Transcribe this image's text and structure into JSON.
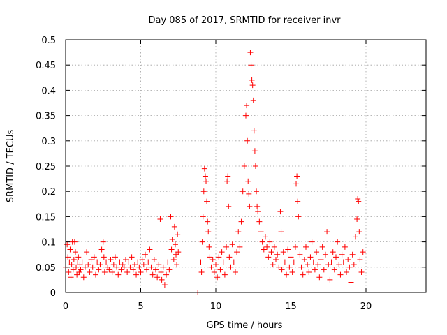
{
  "chart_data": {
    "type": "scatter",
    "title": "Day 085 of 2017, SRMTID for receiver invr",
    "xlabel": "GPS time / hours",
    "ylabel": "SRMTID / TECUs",
    "xlim": [
      0,
      24
    ],
    "ylim": [
      0,
      0.5
    ],
    "x_ticks": [
      "0",
      "5",
      "10",
      "15",
      "20"
    ],
    "y_ticks": [
      "0",
      "0.05",
      "0.1",
      "0.15",
      "0.2",
      "0.25",
      "0.3",
      "0.35",
      "0.4",
      "0.45",
      "0.5"
    ],
    "grid": true,
    "marker": "+",
    "color": "#ff0000",
    "series": [
      {
        "points": [
          [
            0.0,
            0.05
          ],
          [
            0.1,
            0.095
          ],
          [
            0.15,
            0.07
          ],
          [
            0.2,
            0.04
          ],
          [
            0.25,
            0.06
          ],
          [
            0.3,
            0.085
          ],
          [
            0.35,
            0.03
          ],
          [
            0.4,
            0.055
          ],
          [
            0.45,
            0.1
          ],
          [
            0.5,
            0.045
          ],
          [
            0.55,
            0.065
          ],
          [
            0.6,
            0.1
          ],
          [
            0.65,
            0.08
          ],
          [
            0.7,
            0.05
          ],
          [
            0.75,
            0.035
          ],
          [
            0.8,
            0.06
          ],
          [
            0.85,
            0.07
          ],
          [
            0.9,
            0.04
          ],
          [
            0.95,
            0.055
          ],
          [
            1.0,
            0.045
          ],
          [
            1.1,
            0.06
          ],
          [
            1.2,
            0.03
          ],
          [
            1.3,
            0.05
          ],
          [
            1.4,
            0.08
          ],
          [
            1.5,
            0.055
          ],
          [
            1.6,
            0.04
          ],
          [
            1.7,
            0.065
          ],
          [
            1.8,
            0.05
          ],
          [
            1.9,
            0.07
          ],
          [
            2.0,
            0.035
          ],
          [
            2.1,
            0.06
          ],
          [
            2.2,
            0.045
          ],
          [
            2.3,
            0.055
          ],
          [
            2.4,
            0.085
          ],
          [
            2.5,
            0.1
          ],
          [
            2.55,
            0.07
          ],
          [
            2.6,
            0.04
          ],
          [
            2.7,
            0.06
          ],
          [
            2.8,
            0.05
          ],
          [
            2.9,
            0.045
          ],
          [
            3.0,
            0.065
          ],
          [
            3.1,
            0.04
          ],
          [
            3.2,
            0.055
          ],
          [
            3.3,
            0.07
          ],
          [
            3.4,
            0.05
          ],
          [
            3.5,
            0.035
          ],
          [
            3.6,
            0.06
          ],
          [
            3.7,
            0.045
          ],
          [
            3.8,
            0.055
          ],
          [
            3.9,
            0.05
          ],
          [
            4.0,
            0.065
          ],
          [
            4.1,
            0.04
          ],
          [
            4.2,
            0.06
          ],
          [
            4.3,
            0.05
          ],
          [
            4.4,
            0.07
          ],
          [
            4.5,
            0.045
          ],
          [
            4.6,
            0.055
          ],
          [
            4.7,
            0.035
          ],
          [
            4.8,
            0.06
          ],
          [
            4.9,
            0.05
          ],
          [
            5.0,
            0.04
          ],
          [
            5.1,
            0.065
          ],
          [
            5.2,
            0.055
          ],
          [
            5.3,
            0.075
          ],
          [
            5.4,
            0.045
          ],
          [
            5.5,
            0.06
          ],
          [
            5.6,
            0.085
          ],
          [
            5.7,
            0.05
          ],
          [
            5.8,
            0.035
          ],
          [
            5.9,
            0.065
          ],
          [
            6.0,
            0.045
          ],
          [
            6.1,
            0.03
          ],
          [
            6.2,
            0.055
          ],
          [
            6.3,
            0.145
          ],
          [
            6.35,
            0.04
          ],
          [
            6.4,
            0.025
          ],
          [
            6.5,
            0.05
          ],
          [
            6.6,
            0.015
          ],
          [
            6.7,
            0.035
          ],
          [
            6.8,
            0.06
          ],
          [
            6.9,
            0.045
          ],
          [
            7.0,
            0.15
          ],
          [
            7.05,
            0.085
          ],
          [
            7.1,
            0.105
          ],
          [
            7.2,
            0.065
          ],
          [
            7.25,
            0.13
          ],
          [
            7.3,
            0.095
          ],
          [
            7.35,
            0.075
          ],
          [
            7.4,
            0.055
          ],
          [
            7.45,
            0.115
          ],
          [
            7.5,
            0.08
          ],
          [
            8.8,
            0.0
          ],
          [
            9.0,
            0.06
          ],
          [
            9.05,
            0.04
          ],
          [
            9.1,
            0.1
          ],
          [
            9.15,
            0.15
          ],
          [
            9.2,
            0.2
          ],
          [
            9.25,
            0.245
          ],
          [
            9.3,
            0.23
          ],
          [
            9.35,
            0.22
          ],
          [
            9.4,
            0.18
          ],
          [
            9.45,
            0.14
          ],
          [
            9.5,
            0.12
          ],
          [
            9.55,
            0.09
          ],
          [
            9.6,
            0.07
          ],
          [
            9.7,
            0.05
          ],
          [
            9.8,
            0.065
          ],
          [
            9.9,
            0.04
          ],
          [
            10.0,
            0.055
          ],
          [
            10.1,
            0.03
          ],
          [
            10.2,
            0.07
          ],
          [
            10.3,
            0.045
          ],
          [
            10.4,
            0.08
          ],
          [
            10.5,
            0.06
          ],
          [
            10.6,
            0.035
          ],
          [
            10.7,
            0.09
          ],
          [
            10.75,
            0.22
          ],
          [
            10.8,
            0.23
          ],
          [
            10.85,
            0.17
          ],
          [
            10.9,
            0.07
          ],
          [
            11.0,
            0.05
          ],
          [
            11.1,
            0.095
          ],
          [
            11.2,
            0.06
          ],
          [
            11.3,
            0.04
          ],
          [
            11.4,
            0.08
          ],
          [
            11.5,
            0.12
          ],
          [
            11.6,
            0.09
          ],
          [
            11.7,
            0.14
          ],
          [
            11.8,
            0.2
          ],
          [
            11.9,
            0.25
          ],
          [
            12.0,
            0.35
          ],
          [
            12.05,
            0.37
          ],
          [
            12.1,
            0.3
          ],
          [
            12.15,
            0.22
          ],
          [
            12.2,
            0.195
          ],
          [
            12.25,
            0.17
          ],
          [
            12.3,
            0.475
          ],
          [
            12.35,
            0.45
          ],
          [
            12.4,
            0.42
          ],
          [
            12.45,
            0.41
          ],
          [
            12.5,
            0.38
          ],
          [
            12.55,
            0.32
          ],
          [
            12.6,
            0.28
          ],
          [
            12.65,
            0.25
          ],
          [
            12.7,
            0.2
          ],
          [
            12.75,
            0.17
          ],
          [
            12.8,
            0.16
          ],
          [
            12.9,
            0.14
          ],
          [
            13.0,
            0.12
          ],
          [
            13.1,
            0.1
          ],
          [
            13.2,
            0.085
          ],
          [
            13.3,
            0.11
          ],
          [
            13.4,
            0.09
          ],
          [
            13.5,
            0.07
          ],
          [
            13.6,
            0.1
          ],
          [
            13.7,
            0.08
          ],
          [
            13.8,
            0.055
          ],
          [
            13.9,
            0.09
          ],
          [
            14.0,
            0.065
          ],
          [
            14.1,
            0.075
          ],
          [
            14.2,
            0.05
          ],
          [
            14.3,
            0.16
          ],
          [
            14.35,
            0.12
          ],
          [
            14.4,
            0.045
          ],
          [
            14.5,
            0.08
          ],
          [
            14.6,
            0.06
          ],
          [
            14.7,
            0.035
          ],
          [
            14.8,
            0.085
          ],
          [
            14.9,
            0.05
          ],
          [
            15.0,
            0.07
          ],
          [
            15.1,
            0.04
          ],
          [
            15.2,
            0.06
          ],
          [
            15.3,
            0.09
          ],
          [
            15.35,
            0.215
          ],
          [
            15.4,
            0.23
          ],
          [
            15.45,
            0.18
          ],
          [
            15.5,
            0.15
          ],
          [
            15.6,
            0.075
          ],
          [
            15.7,
            0.05
          ],
          [
            15.8,
            0.035
          ],
          [
            15.9,
            0.065
          ],
          [
            16.0,
            0.09
          ],
          [
            16.1,
            0.055
          ],
          [
            16.2,
            0.04
          ],
          [
            16.3,
            0.07
          ],
          [
            16.4,
            0.1
          ],
          [
            16.5,
            0.06
          ],
          [
            16.6,
            0.045
          ],
          [
            16.7,
            0.08
          ],
          [
            16.8,
            0.055
          ],
          [
            16.9,
            0.03
          ],
          [
            17.0,
            0.065
          ],
          [
            17.1,
            0.09
          ],
          [
            17.2,
            0.045
          ],
          [
            17.3,
            0.075
          ],
          [
            17.4,
            0.12
          ],
          [
            17.5,
            0.055
          ],
          [
            17.6,
            0.025
          ],
          [
            17.7,
            0.06
          ],
          [
            17.8,
            0.08
          ],
          [
            17.9,
            0.045
          ],
          [
            18.0,
            0.07
          ],
          [
            18.1,
            0.1
          ],
          [
            18.2,
            0.055
          ],
          [
            18.3,
            0.035
          ],
          [
            18.4,
            0.075
          ],
          [
            18.5,
            0.06
          ],
          [
            18.6,
            0.09
          ],
          [
            18.7,
            0.04
          ],
          [
            18.8,
            0.065
          ],
          [
            18.9,
            0.05
          ],
          [
            19.0,
            0.02
          ],
          [
            19.1,
            0.075
          ],
          [
            19.2,
            0.055
          ],
          [
            19.3,
            0.11
          ],
          [
            19.4,
            0.145
          ],
          [
            19.45,
            0.185
          ],
          [
            19.5,
            0.18
          ],
          [
            19.55,
            0.12
          ],
          [
            19.6,
            0.065
          ],
          [
            19.7,
            0.04
          ],
          [
            19.8,
            0.08
          ]
        ]
      }
    ]
  }
}
